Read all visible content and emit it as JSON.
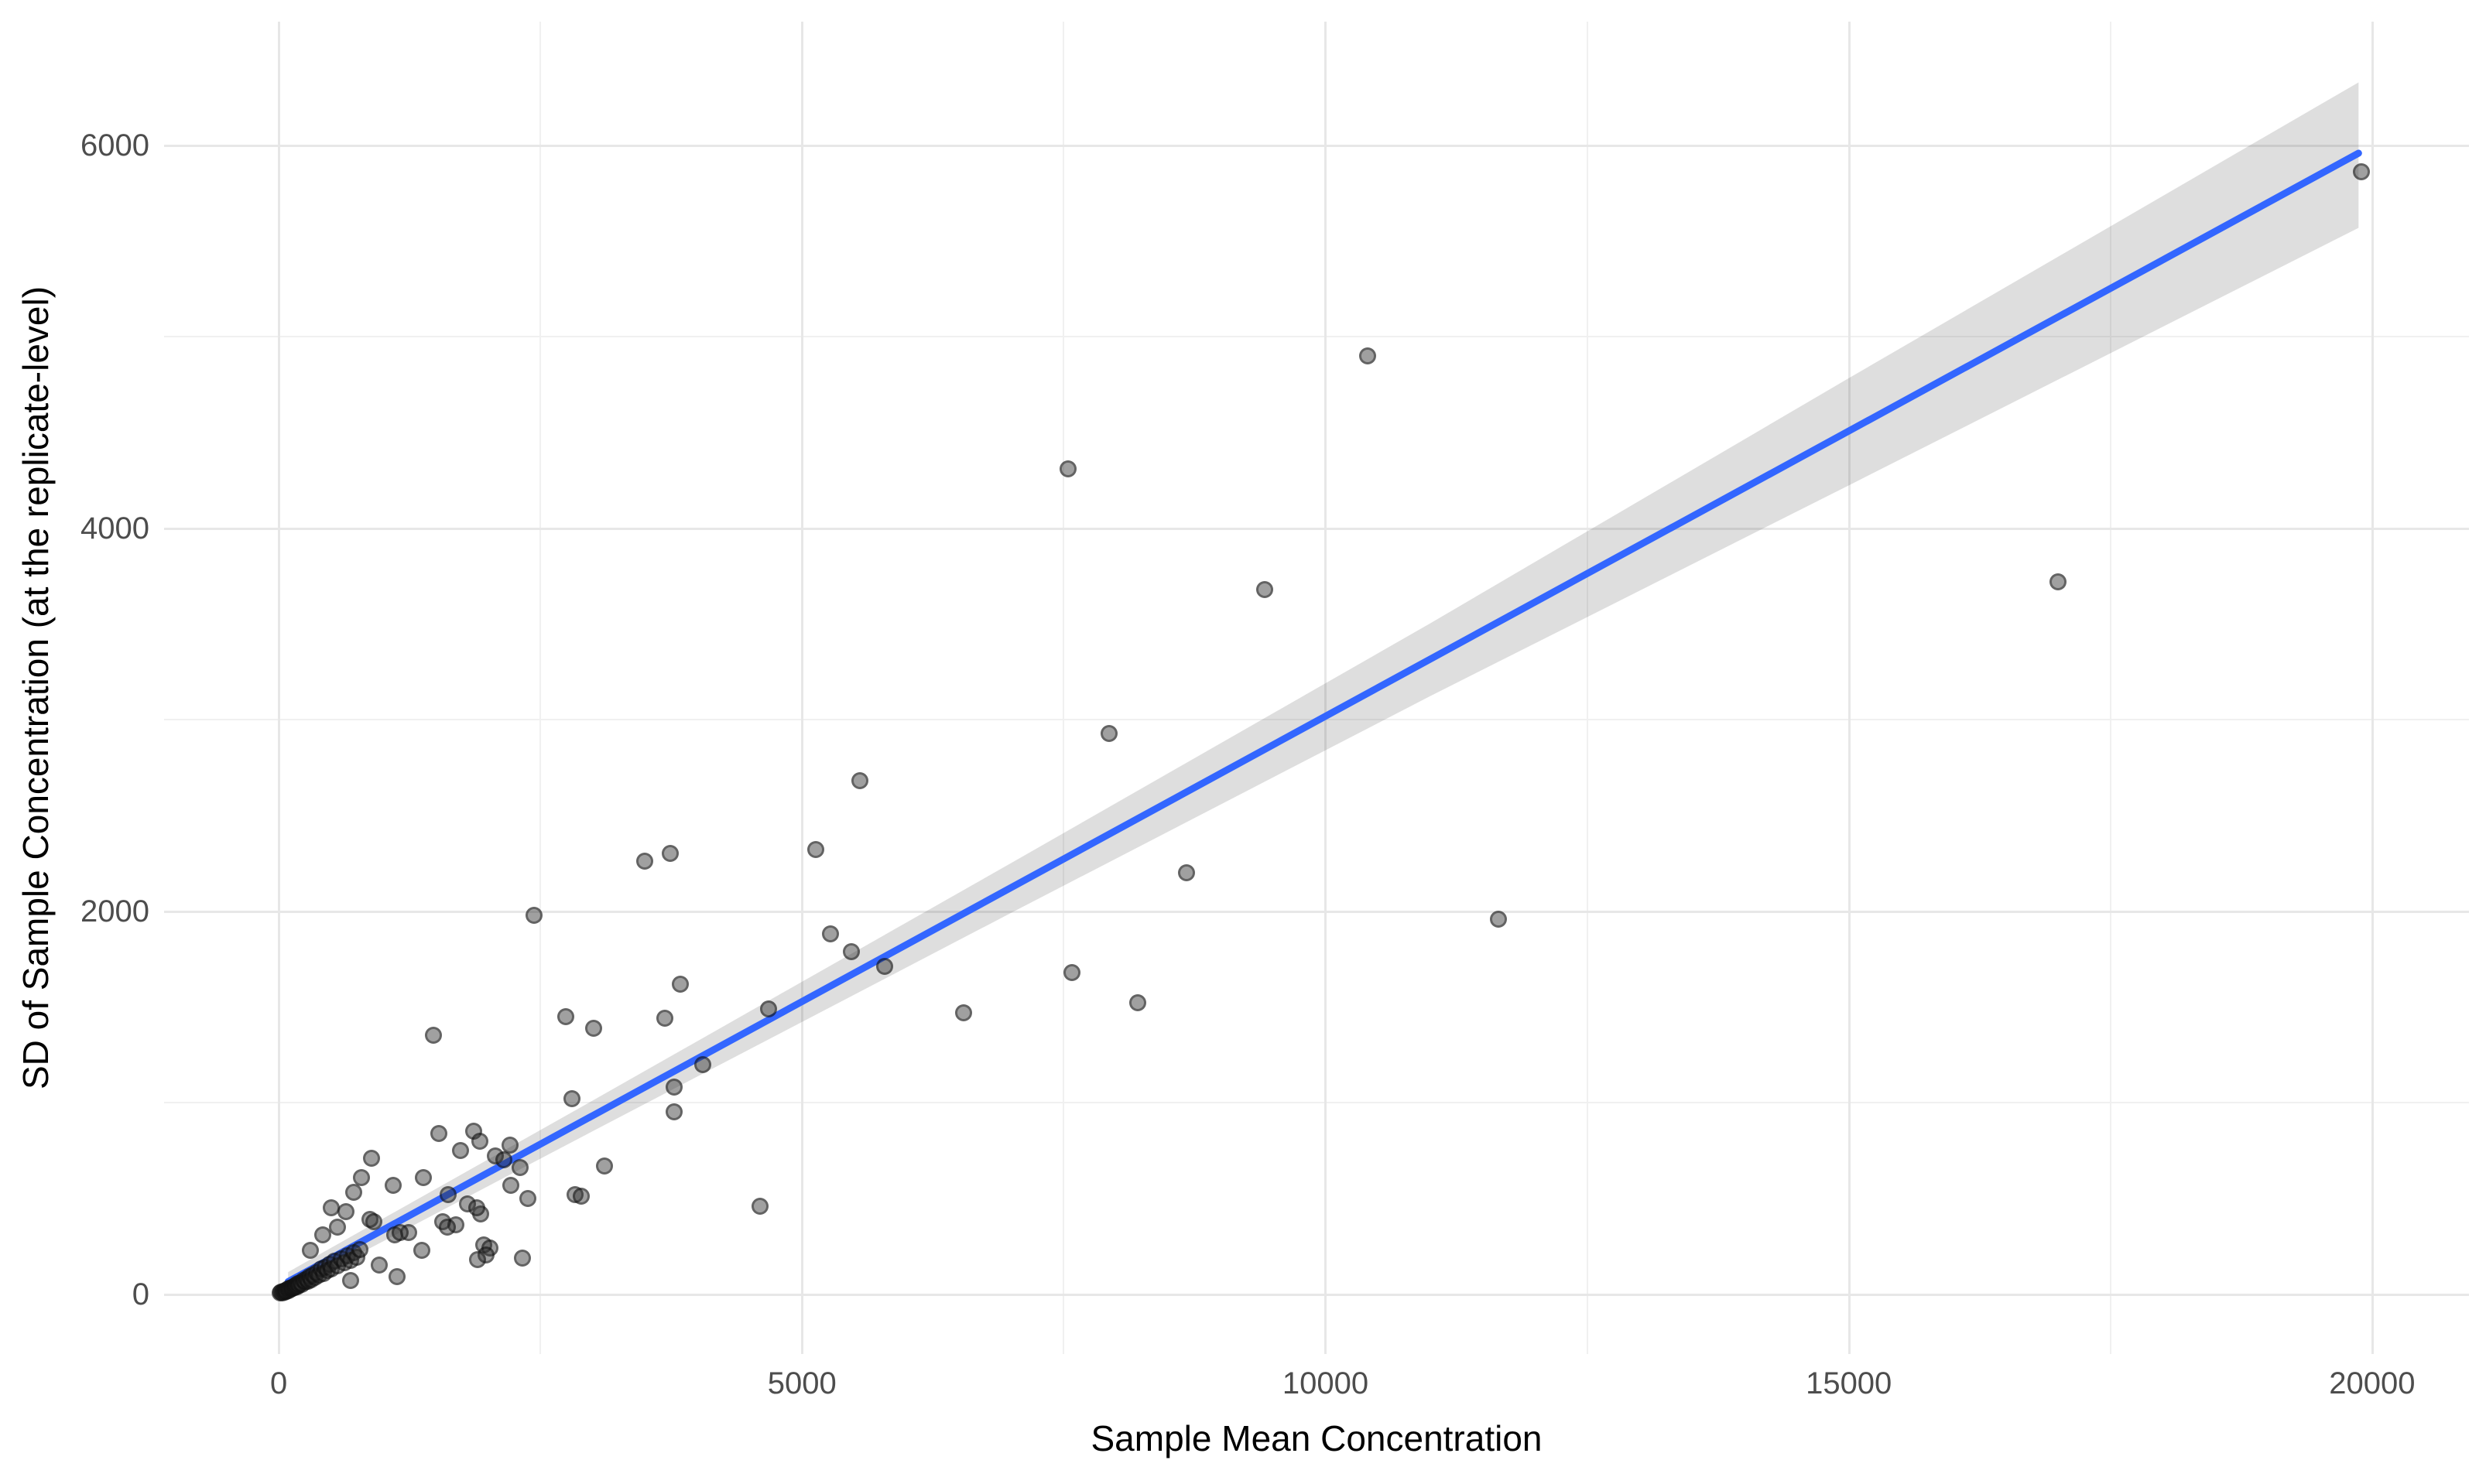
{
  "chart_data": {
    "type": "scatter",
    "title": "",
    "xlabel": "Sample Mean Concentration",
    "ylabel": "SD of Sample Concentration (at the replicate-level)",
    "xlim": [
      -1095,
      20925
    ],
    "ylim": [
      -313,
      6646
    ],
    "x_ticks": [
      0,
      5000,
      10000,
      15000,
      20000
    ],
    "x_minor_ticks": [
      2500,
      7500,
      12500,
      17500
    ],
    "y_ticks": [
      0,
      2000,
      4000,
      6000
    ],
    "y_minor_ticks": [
      1000,
      3000,
      5000
    ],
    "grid": true,
    "legend": "none",
    "points": [
      [
        19900,
        5860
      ],
      [
        10400,
        4900
      ],
      [
        7540,
        4310
      ],
      [
        17000,
        3720
      ],
      [
        9420,
        3680
      ],
      [
        7930,
        2930
      ],
      [
        5550,
        2680
      ],
      [
        5130,
        2320
      ],
      [
        3740,
        2300
      ],
      [
        3500,
        2260
      ],
      [
        8670,
        2200
      ],
      [
        2440,
        1980
      ],
      [
        11650,
        1960
      ],
      [
        5270,
        1880
      ],
      [
        5470,
        1790
      ],
      [
        5790,
        1710
      ],
      [
        7580,
        1680
      ],
      [
        3840,
        1620
      ],
      [
        8210,
        1520
      ],
      [
        6540,
        1470
      ],
      [
        4680,
        1490
      ],
      [
        3690,
        1440
      ],
      [
        2740,
        1450
      ],
      [
        3010,
        1390
      ],
      [
        1480,
        1350
      ],
      [
        4050,
        1200
      ],
      [
        3780,
        1080
      ],
      [
        2800,
        1020
      ],
      [
        3780,
        950
      ],
      [
        1530,
        840
      ],
      [
        1860,
        850
      ],
      [
        1920,
        800
      ],
      [
        2210,
        780
      ],
      [
        1740,
        750
      ],
      [
        2070,
        720
      ],
      [
        2150,
        700
      ],
      [
        890,
        710
      ],
      [
        3110,
        670
      ],
      [
        2310,
        660
      ],
      [
        1380,
        610
      ],
      [
        790,
        610
      ],
      [
        1090,
        570
      ],
      [
        2220,
        570
      ],
      [
        720,
        530
      ],
      [
        1620,
        520
      ],
      [
        2380,
        500
      ],
      [
        2830,
        520
      ],
      [
        2890,
        510
      ],
      [
        500,
        450
      ],
      [
        640,
        430
      ],
      [
        1930,
        420
      ],
      [
        870,
        390
      ],
      [
        910,
        380
      ],
      [
        1570,
        380
      ],
      [
        1690,
        360
      ],
      [
        1610,
        350
      ],
      [
        560,
        350
      ],
      [
        1800,
        470
      ],
      [
        1890,
        450
      ],
      [
        420,
        310
      ],
      [
        1110,
        310
      ],
      [
        1240,
        320
      ],
      [
        1160,
        320
      ],
      [
        1370,
        230
      ],
      [
        4600,
        460
      ],
      [
        2330,
        190
      ],
      [
        1960,
        255
      ],
      [
        2020,
        240
      ],
      [
        1980,
        205
      ],
      [
        1900,
        180
      ],
      [
        960,
        150
      ],
      [
        1130,
        90
      ],
      [
        690,
        70
      ],
      [
        300,
        230
      ],
      [
        15,
        5
      ],
      [
        25,
        10
      ],
      [
        35,
        8
      ],
      [
        45,
        15
      ],
      [
        55,
        12
      ],
      [
        65,
        20
      ],
      [
        75,
        16
      ],
      [
        85,
        25
      ],
      [
        95,
        20
      ],
      [
        105,
        30
      ],
      [
        115,
        26
      ],
      [
        125,
        35
      ],
      [
        135,
        30
      ],
      [
        145,
        40
      ],
      [
        155,
        36
      ],
      [
        165,
        45
      ],
      [
        175,
        40
      ],
      [
        185,
        55
      ],
      [
        195,
        46
      ],
      [
        205,
        60
      ],
      [
        220,
        50
      ],
      [
        235,
        70
      ],
      [
        250,
        62
      ],
      [
        265,
        80
      ],
      [
        280,
        66
      ],
      [
        295,
        90
      ],
      [
        310,
        76
      ],
      [
        325,
        100
      ],
      [
        345,
        88
      ],
      [
        365,
        110
      ],
      [
        385,
        98
      ],
      [
        405,
        130
      ],
      [
        425,
        108
      ],
      [
        445,
        140
      ],
      [
        465,
        122
      ],
      [
        485,
        155
      ],
      [
        505,
        132
      ],
      [
        535,
        170
      ],
      [
        565,
        148
      ],
      [
        595,
        185
      ],
      [
        625,
        162
      ],
      [
        655,
        200
      ],
      [
        685,
        178
      ],
      [
        715,
        215
      ],
      [
        745,
        192
      ],
      [
        775,
        232
      ]
    ],
    "trend_line": {
      "type": "linear",
      "x_start": 90,
      "y_start": 65,
      "x_end": 19870,
      "y_end": 5959
    },
    "confidence_band": {
      "upper": [
        [
          90,
          115
        ],
        [
          3000,
          1011
        ],
        [
          7000,
          2252
        ],
        [
          11000,
          3503
        ],
        [
          15000,
          4784
        ],
        [
          19870,
          6329
        ]
      ],
      "lower": [
        [
          90,
          15
        ],
        [
          3000,
          851
        ],
        [
          7000,
          1992
        ],
        [
          11000,
          3123
        ],
        [
          15000,
          4224
        ],
        [
          19870,
          5569
        ]
      ]
    }
  },
  "colors": {
    "trend_line": "#3366FF",
    "confidence_band": "rgba(70,70,70,0.18)",
    "point_fill": "rgba(45,45,45,0.45)",
    "point_stroke": "rgba(0,0,0,0.38)",
    "grid_major": "#e7e7e7",
    "grid_minor": "#f0f0f0",
    "tick_text": "#4d4d4d",
    "axis_title_text": "#000000",
    "background": "#ffffff"
  }
}
